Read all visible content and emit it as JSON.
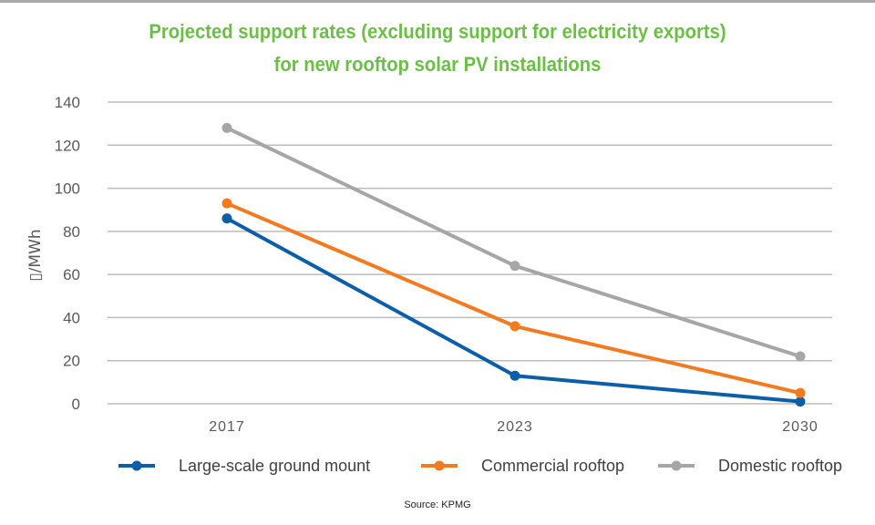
{
  "chart_data": {
    "type": "line",
    "title": [
      "Projected support rates (excluding support for electricity exports)",
      "for new rooftop solar PV installations"
    ],
    "xlabel": "",
    "ylabel": "▯/MWh",
    "categories": [
      "2017",
      "2023",
      "2030"
    ],
    "ylim": [
      0,
      140
    ],
    "yticks": [
      0,
      20,
      40,
      60,
      80,
      100,
      120,
      140
    ],
    "grid": true,
    "legend_position": "bottom",
    "series": [
      {
        "name": "Large-scale ground mount",
        "color": "#0b5ea8",
        "values": [
          86,
          13,
          1
        ]
      },
      {
        "name": "Commercial rooftop",
        "color": "#f47a20",
        "values": [
          93,
          36,
          5
        ]
      },
      {
        "name": "Domestic rooftop",
        "color": "#a6a6a6",
        "values": [
          128,
          64,
          22
        ]
      }
    ],
    "source": "Source: KPMG"
  },
  "colors": {
    "title": "#6cbf46",
    "grid": "#bdbdbd",
    "tick_text": "#595959"
  }
}
